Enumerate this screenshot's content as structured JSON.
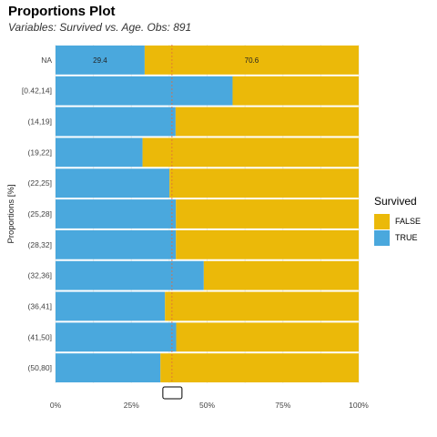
{
  "title": "Proportions Plot",
  "subtitle": "Variables: Survived vs. Age. Obs: 891",
  "colors": {
    "false": "#EBB909",
    "true": "#4AA8DD",
    "reference": "#E06A3A"
  },
  "legend": {
    "title": "Survived",
    "items": [
      {
        "label": "FALSE",
        "color": "#EBB909"
      },
      {
        "label": "TRUE",
        "color": "#4AA8DD"
      }
    ]
  },
  "chart_data": {
    "type": "bar",
    "orientation": "horizontal",
    "stacked": true,
    "title": "Proportions Plot",
    "subtitle": "Variables: Survived vs. Age. Obs: 891",
    "ylabel": "Proportions [%]",
    "xlabel": "",
    "xlim": [
      0,
      100
    ],
    "x_ticks": [
      "0%",
      "25%",
      "50%",
      "75%",
      "100%"
    ],
    "categories": [
      "NA",
      "[0.42,14]",
      "(14,19]",
      "(19,22]",
      "(22,25]",
      "(25,28]",
      "(28,32]",
      "(32,36]",
      "(36,41]",
      "(41,50]",
      "(50,80]"
    ],
    "series": [
      {
        "name": "TRUE",
        "values": [
          29.4,
          58.4,
          39.6,
          28.7,
          37.6,
          39.7,
          39.7,
          48.9,
          36.1,
          39.8,
          34.6
        ]
      },
      {
        "name": "FALSE",
        "values": [
          70.6,
          41.6,
          60.4,
          71.3,
          62.4,
          60.3,
          60.3,
          51.1,
          63.9,
          60.2,
          65.4
        ]
      }
    ],
    "data_labels": {
      "NA": {
        "TRUE": "29.4",
        "FALSE": "70.6"
      }
    },
    "reference_line": 38.4,
    "grid": true,
    "legend_position": "right"
  }
}
